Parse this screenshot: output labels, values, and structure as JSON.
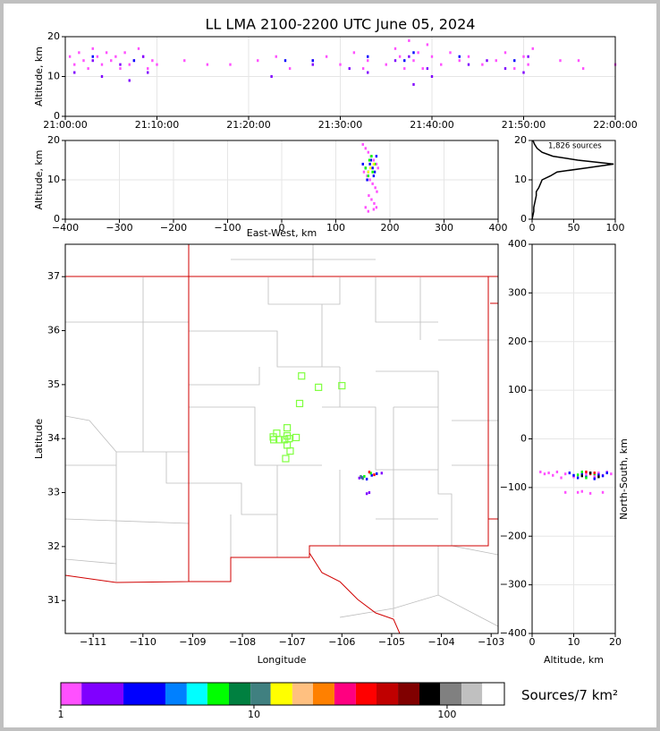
{
  "chart_data": [
    {
      "type": "scatter",
      "title": "LL LMA 2100-2200 UTC June 05, 2024",
      "ylabel": "Altitude, km",
      "xlim": [
        0,
        60
      ],
      "xticks": [
        {
          "value": 0,
          "label": "21:00:00"
        },
        {
          "value": 10,
          "label": "21:10:00"
        },
        {
          "value": 20,
          "label": "21:20:00"
        },
        {
          "value": 30,
          "label": "21:30:00"
        },
        {
          "value": 40,
          "label": "21:40:00"
        },
        {
          "value": 50,
          "label": "21:50:00"
        },
        {
          "value": 60,
          "label": "22:00:00"
        }
      ],
      "ylim": [
        0,
        20
      ],
      "yticks": [
        0,
        10,
        20
      ],
      "grid": true,
      "series": [
        {
          "color": "#ff50ff",
          "x": [
            0.5,
            1,
            1.5,
            2,
            2.5,
            3,
            3.5,
            4,
            4.5,
            5,
            5.5,
            6,
            6.5,
            7,
            7.5,
            8,
            8.5,
            9,
            9.5,
            10,
            13,
            15.5,
            18,
            21,
            23,
            24.5,
            27,
            28.5,
            30,
            31.5,
            32.5,
            33,
            35,
            36,
            36.5,
            37,
            37.5,
            38,
            38.5,
            39,
            39.5,
            40,
            41,
            42,
            43,
            44,
            45.5,
            47,
            48,
            49,
            50,
            50.5,
            51,
            54,
            56,
            56.5,
            60
          ],
          "values": [
            15,
            13,
            16,
            14,
            12,
            17,
            15,
            13,
            16,
            14,
            15,
            12,
            16,
            13,
            14,
            17,
            15,
            12,
            14,
            13,
            14,
            13,
            13,
            14,
            15,
            12,
            14,
            15,
            13,
            16,
            12,
            14,
            13,
            17,
            15,
            12,
            19,
            14,
            16,
            12,
            18,
            15,
            13,
            16,
            14,
            15,
            13,
            14,
            16,
            12,
            15,
            13,
            17,
            14,
            14,
            12,
            13
          ]
        },
        {
          "color": "#8000ff",
          "x": [
            1,
            3,
            4,
            6,
            7,
            8.5,
            9,
            22.5,
            27,
            31,
            33,
            36,
            37.5,
            38,
            39.5,
            40,
            44,
            46,
            48,
            50,
            50.5
          ],
          "values": [
            11,
            14,
            10,
            13,
            9,
            15,
            11,
            10,
            13,
            12,
            11,
            14,
            15,
            8,
            12,
            10,
            13,
            14,
            12,
            11,
            15
          ]
        },
        {
          "color": "#0000ff",
          "x": [
            3,
            7.5,
            24,
            27,
            33,
            37,
            38,
            43,
            49
          ],
          "values": [
            15,
            14,
            14,
            14,
            15,
            14,
            16,
            15,
            14
          ]
        }
      ]
    },
    {
      "type": "scatter",
      "xlabel": "East-West, km",
      "ylabel": "Altitude, km",
      "xlim": [
        -400,
        400
      ],
      "xticks": [
        {
          "value": -400,
          "label": "−400"
        },
        {
          "value": -300,
          "label": "−300"
        },
        {
          "value": -200,
          "label": "−200"
        },
        {
          "value": -100,
          "label": "−100"
        },
        0,
        100,
        200,
        300,
        400
      ],
      "ylim": [
        0,
        20
      ],
      "yticks": [
        0,
        10,
        20
      ],
      "grid": true,
      "series": [
        {
          "color": "#ff50ff",
          "x": [
            150,
            155,
            160,
            165,
            170,
            175,
            178,
            152,
            158,
            163,
            168,
            173,
            176,
            161,
            166,
            171,
            155,
            175,
            160,
            170
          ],
          "values": [
            19,
            18,
            17,
            16,
            15,
            14,
            13,
            12,
            11,
            10,
            9,
            8,
            7,
            6,
            5,
            4,
            3,
            3,
            2,
            2.5
          ]
        },
        {
          "color": "#0000ff",
          "x": [
            150,
            155,
            160,
            165,
            170,
            175,
            158,
            163,
            168,
            172
          ],
          "values": [
            14,
            13,
            12,
            15,
            11,
            16,
            10,
            14,
            13,
            12
          ]
        },
        {
          "color": "#00ff00",
          "x": [
            155,
            162,
            168,
            172,
            160,
            166
          ],
          "values": [
            13,
            15,
            12,
            14,
            11,
            16
          ]
        },
        {
          "color": "#ffff00",
          "x": [
            164,
            170,
            160
          ],
          "values": [
            13,
            14,
            12
          ]
        }
      ]
    },
    {
      "type": "line",
      "orientation": "horizontal",
      "annotation": "1,826 sources",
      "xlim": [
        0,
        100
      ],
      "xticks": [
        0,
        50,
        100
      ],
      "ylim": [
        0,
        20
      ],
      "yticks": [
        0,
        10,
        20
      ],
      "grid": true,
      "series": [
        {
          "color": "#000000",
          "y": [
            0,
            1,
            2,
            3,
            4,
            5,
            6,
            7,
            8,
            9,
            10,
            11,
            12,
            13,
            14,
            15,
            16,
            17,
            18,
            19,
            20
          ],
          "values": [
            0,
            1,
            2,
            2,
            3,
            4,
            5,
            5,
            8,
            10,
            12,
            22,
            30,
            65,
            98,
            55,
            25,
            12,
            6,
            3,
            1
          ]
        }
      ]
    },
    {
      "type": "scatter",
      "xlabel": "Longitude",
      "ylabel": "Latitude",
      "xlim": [
        -111.56,
        -102.86
      ],
      "xticks": [
        {
          "value": -111,
          "label": "−111"
        },
        {
          "value": -110,
          "label": "−110"
        },
        {
          "value": -109,
          "label": "−109"
        },
        {
          "value": -108,
          "label": "−108"
        },
        {
          "value": -107,
          "label": "−107"
        },
        {
          "value": -106,
          "label": "−106"
        },
        {
          "value": -105,
          "label": "−105"
        },
        {
          "value": -104,
          "label": "−104"
        },
        {
          "value": -103,
          "label": "−103"
        }
      ],
      "ylim": [
        30.39,
        37.6
      ],
      "yticks": [
        31,
        32,
        33,
        34,
        35,
        36,
        37
      ],
      "grid": false,
      "series": [
        {
          "color": "#80ff40",
          "marker": "square-open",
          "x": [
            -106.81,
            -106.47,
            -106.0,
            -106.85,
            -107.1,
            -107.31,
            -107.1,
            -107.37,
            -107.26,
            -107.15,
            -107.06,
            -106.92,
            -107.1,
            -107.04,
            -107.13,
            -107.38
          ],
          "values": [
            35.16,
            34.95,
            34.98,
            34.65,
            34.2,
            34.1,
            34.05,
            33.98,
            33.98,
            33.98,
            34.0,
            34.02,
            33.88,
            33.77,
            33.63,
            34.03
          ]
        },
        {
          "color": "#0000ff",
          "x": [
            -105.6,
            -105.4,
            -105.3,
            -105.5
          ],
          "values": [
            33.28,
            33.32,
            33.35,
            33.25
          ]
        },
        {
          "color": "#00ff00",
          "x": [
            -105.55,
            -105.42
          ],
          "values": [
            33.3,
            33.36
          ]
        },
        {
          "color": "#ff0000",
          "x": [
            -105.45,
            -105.35
          ],
          "values": [
            33.38,
            33.33
          ]
        },
        {
          "color": "#8000ff",
          "x": [
            -105.65,
            -105.2,
            -105.5,
            -105.45
          ],
          "values": [
            33.27,
            33.36,
            32.98,
            33.0
          ]
        },
        {
          "color": "#408080",
          "x": [
            -105.62,
            -105.58
          ],
          "values": [
            33.3,
            33.26
          ]
        }
      ]
    },
    {
      "type": "scatter",
      "xlabel": "Altitude, km",
      "ylabel": "North-South, km",
      "ylabel_side": "right",
      "xlim": [
        0,
        20
      ],
      "xticks": [
        0,
        10,
        20
      ],
      "ylim": [
        -400,
        400
      ],
      "yticks": [
        {
          "value": -400,
          "label": "−400"
        },
        {
          "value": -300,
          "label": "−300"
        },
        {
          "value": -200,
          "label": "−200"
        },
        {
          "value": -100,
          "label": "−100"
        },
        0,
        100,
        200,
        300,
        400
      ],
      "grid": true,
      "series": [
        {
          "color": "#ff50ff",
          "x": [
            2,
            3,
            4,
            5,
            6,
            7,
            8,
            9,
            10,
            11,
            12,
            13,
            14,
            15,
            16,
            17,
            18,
            19,
            8,
            12,
            15,
            17
          ],
          "values": [
            -68,
            -72,
            -70,
            -75,
            -68,
            -80,
            -72,
            -70,
            -78,
            -110,
            -68,
            -72,
            -112,
            -75,
            -70,
            -110,
            -68,
            -72,
            -110,
            -108,
            -80,
            -75
          ]
        },
        {
          "color": "#0000ff",
          "x": [
            9,
            10,
            11,
            12,
            13,
            14,
            15,
            16,
            17,
            18
          ],
          "values": [
            -70,
            -75,
            -80,
            -72,
            -78,
            -70,
            -82,
            -74,
            -76,
            -70
          ]
        },
        {
          "color": "#00ff00",
          "x": [
            11,
            13,
            15,
            12
          ],
          "values": [
            -74,
            -80,
            -72,
            -68
          ]
        },
        {
          "color": "#ff0000",
          "x": [
            13,
            14,
            15
          ],
          "values": [
            -68,
            -72,
            -70
          ]
        },
        {
          "color": "#000000",
          "x": [
            12,
            14,
            16
          ],
          "values": [
            -76,
            -70,
            -78
          ]
        }
      ]
    },
    {
      "type": "colorbar",
      "label": "Sources/7 km²",
      "log": true,
      "xlim": [
        1,
        198
      ],
      "xticks": [
        1,
        10,
        100
      ],
      "bounds": [
        1,
        1.28,
        2.11,
        3.48,
        4.49,
        5.74,
        7.42,
        9.6,
        12.2,
        15.8,
        20.2,
        26.1,
        33.7,
        43.1,
        55.7,
        71.9,
        91.9,
        118.8,
        152,
        198
      ],
      "colors": [
        "#ff50ff",
        "#8000ff",
        "#0000ff",
        "#0080ff",
        "#00ffff",
        "#00ff00",
        "#008040",
        "#408080",
        "#ffff00",
        "#ffc080",
        "#ff8000",
        "#ff0080",
        "#ff0000",
        "#c00000",
        "#800000",
        "#000000",
        "#808080",
        "#c0c0c0",
        "#ffffff"
      ]
    }
  ]
}
